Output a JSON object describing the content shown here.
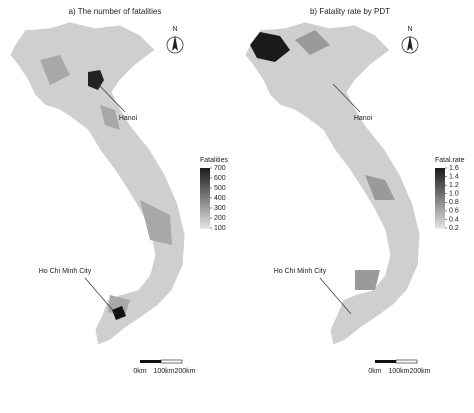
{
  "panels": [
    {
      "title": "a) The number of fatalities",
      "north": "N",
      "legend": {
        "title": "Fatalities",
        "ticks": [
          700,
          600,
          500,
          400,
          300,
          200,
          100
        ]
      },
      "labels": [
        "Hanoi",
        "Ho Chi Minh City"
      ],
      "scale": [
        "0km",
        "100km",
        "200km"
      ]
    },
    {
      "title": "b) Fatality rate by PDT",
      "north": "N",
      "legend": {
        "title": "Fatal.rate",
        "ticks": [
          1.6,
          1.4,
          1.2,
          {
            "value": 1,
            "label": "1.0"
          },
          0.8,
          0.6,
          0.4,
          0.2
        ]
      },
      "labels": [
        "Hanoi",
        "Ho Chi Minh City"
      ],
      "scale": [
        "0km",
        "100km",
        "200km"
      ]
    }
  ]
}
